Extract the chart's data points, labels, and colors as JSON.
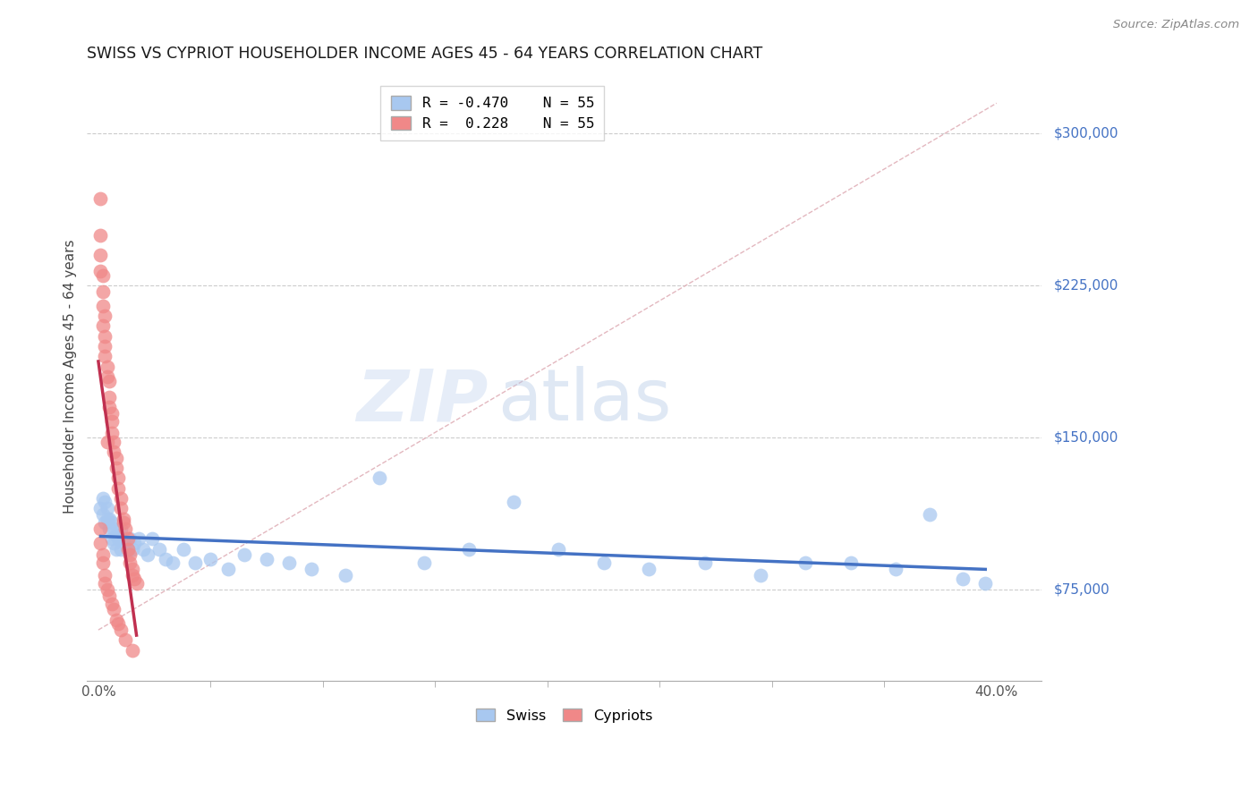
{
  "title": "SWISS VS CYPRIOT HOUSEHOLDER INCOME AGES 45 - 64 YEARS CORRELATION CHART",
  "source": "Source: ZipAtlas.com",
  "ylabel": "Householder Income Ages 45 - 64 years",
  "ytick_labels": [
    "$75,000",
    "$150,000",
    "$225,000",
    "$300,000"
  ],
  "ytick_vals": [
    75000,
    150000,
    225000,
    300000
  ],
  "ylim": [
    30000,
    330000
  ],
  "xlim": [
    -0.005,
    0.42
  ],
  "swiss_R": -0.47,
  "swiss_N": 55,
  "cypriot_R": 0.228,
  "cypriot_N": 55,
  "swiss_color": "#a8c8f0",
  "cypriot_color": "#f08888",
  "swiss_line_color": "#4472c4",
  "cypriot_line_color": "#c03050",
  "diagonal_color": "#e0b0b8",
  "swiss_x": [
    0.001,
    0.002,
    0.002,
    0.003,
    0.003,
    0.004,
    0.004,
    0.005,
    0.005,
    0.006,
    0.006,
    0.007,
    0.007,
    0.008,
    0.008,
    0.009,
    0.01,
    0.01,
    0.011,
    0.012,
    0.013,
    0.014,
    0.015,
    0.016,
    0.018,
    0.02,
    0.022,
    0.024,
    0.027,
    0.03,
    0.033,
    0.038,
    0.043,
    0.05,
    0.058,
    0.065,
    0.075,
    0.085,
    0.095,
    0.11,
    0.125,
    0.145,
    0.165,
    0.185,
    0.205,
    0.225,
    0.245,
    0.27,
    0.295,
    0.315,
    0.335,
    0.355,
    0.37,
    0.385,
    0.395
  ],
  "swiss_y": [
    115000,
    120000,
    112000,
    118000,
    108000,
    110000,
    115000,
    105000,
    110000,
    108000,
    100000,
    105000,
    98000,
    102000,
    95000,
    100000,
    95000,
    105000,
    100000,
    98000,
    95000,
    100000,
    95000,
    98000,
    100000,
    95000,
    92000,
    100000,
    95000,
    90000,
    88000,
    95000,
    88000,
    90000,
    85000,
    92000,
    90000,
    88000,
    85000,
    82000,
    130000,
    88000,
    95000,
    118000,
    95000,
    88000,
    85000,
    88000,
    82000,
    88000,
    88000,
    85000,
    112000,
    80000,
    78000
  ],
  "cypriot_x": [
    0.001,
    0.001,
    0.001,
    0.001,
    0.002,
    0.002,
    0.002,
    0.002,
    0.003,
    0.003,
    0.003,
    0.003,
    0.004,
    0.004,
    0.004,
    0.005,
    0.005,
    0.005,
    0.006,
    0.006,
    0.006,
    0.007,
    0.007,
    0.008,
    0.008,
    0.009,
    0.009,
    0.01,
    0.01,
    0.011,
    0.011,
    0.012,
    0.013,
    0.013,
    0.014,
    0.014,
    0.015,
    0.015,
    0.016,
    0.017,
    0.001,
    0.001,
    0.002,
    0.002,
    0.003,
    0.003,
    0.004,
    0.005,
    0.006,
    0.007,
    0.008,
    0.009,
    0.01,
    0.012,
    0.015
  ],
  "cypriot_y": [
    268000,
    250000,
    240000,
    232000,
    230000,
    222000,
    215000,
    205000,
    210000,
    200000,
    195000,
    190000,
    185000,
    180000,
    148000,
    178000,
    170000,
    165000,
    162000,
    158000,
    152000,
    148000,
    143000,
    140000,
    135000,
    130000,
    125000,
    120000,
    115000,
    110000,
    108000,
    105000,
    100000,
    95000,
    92000,
    88000,
    85000,
    82000,
    80000,
    78000,
    105000,
    98000,
    92000,
    88000,
    82000,
    78000,
    75000,
    72000,
    68000,
    65000,
    60000,
    58000,
    55000,
    50000,
    45000
  ]
}
